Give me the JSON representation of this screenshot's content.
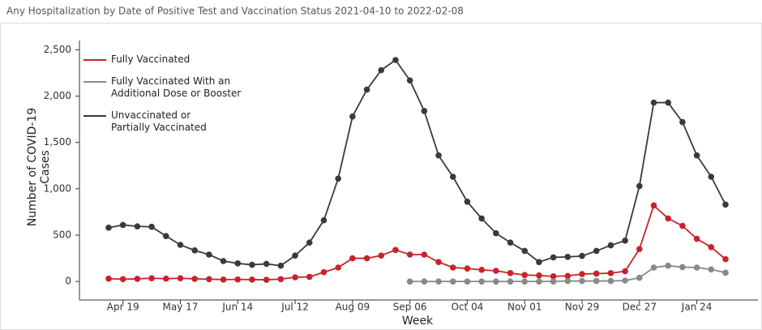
{
  "chart_data": {
    "type": "line",
    "title": "Any Hospitalization by Date of Positive Test and Vaccination Status 2021-04-10 to 2022-02-08",
    "x_label": "Week",
    "y_label": "Number of COVID-19 Cases",
    "categories": [
      null,
      "Apr 19",
      null,
      null,
      null,
      "May 17",
      null,
      null,
      null,
      "Jun 14",
      null,
      null,
      null,
      "Jul 12",
      null,
      null,
      null,
      "Aug 09",
      null,
      null,
      null,
      "Sep 06",
      null,
      null,
      null,
      "Oct 04",
      null,
      null,
      null,
      "Nov 01",
      null,
      null,
      null,
      "Nov 29",
      null,
      null,
      null,
      "Dec 27",
      null,
      null,
      null,
      "Jan 24",
      null,
      null
    ],
    "series": [
      {
        "name": "Fully Vaccinated",
        "color": "#c8232a",
        "values": [
          30,
          25,
          28,
          35,
          30,
          35,
          28,
          25,
          20,
          22,
          20,
          18,
          25,
          45,
          50,
          100,
          150,
          250,
          250,
          280,
          340,
          290,
          290,
          210,
          150,
          140,
          125,
          115,
          90,
          70,
          65,
          55,
          60,
          80,
          85,
          90,
          110,
          350,
          820,
          680,
          600,
          460,
          370,
          240
        ]
      },
      {
        "name": "Fully Vaccinated With an Additional Dose or Booster",
        "color": "#888888",
        "values": [
          null,
          null,
          null,
          null,
          null,
          null,
          null,
          null,
          null,
          null,
          null,
          null,
          null,
          null,
          null,
          null,
          null,
          null,
          null,
          null,
          null,
          0,
          0,
          0,
          0,
          0,
          0,
          0,
          0,
          0,
          0,
          0,
          5,
          5,
          5,
          5,
          10,
          40,
          150,
          170,
          155,
          150,
          130,
          95
        ]
      },
      {
        "name": "Unvaccinated or Partially Vaccinated",
        "color": "#3a3a3a",
        "values": [
          580,
          610,
          595,
          590,
          490,
          395,
          335,
          290,
          220,
          195,
          180,
          190,
          170,
          280,
          420,
          660,
          1110,
          1780,
          2070,
          2280,
          2390,
          2170,
          1840,
          1360,
          1130,
          860,
          680,
          520,
          420,
          330,
          210,
          260,
          265,
          275,
          330,
          390,
          440,
          1030,
          1930,
          1930,
          1720,
          1360,
          1130,
          830
        ]
      }
    ],
    "ylim": [
      -200,
      2600
    ],
    "yticks": [
      0,
      500,
      {
        "value": 1000,
        "label": "1,000"
      },
      {
        "value": 1500,
        "label": "1,500"
      },
      {
        "value": 2000,
        "label": "2,000"
      },
      {
        "value": 2500,
        "label": "2,500"
      }
    ],
    "grid": false
  }
}
